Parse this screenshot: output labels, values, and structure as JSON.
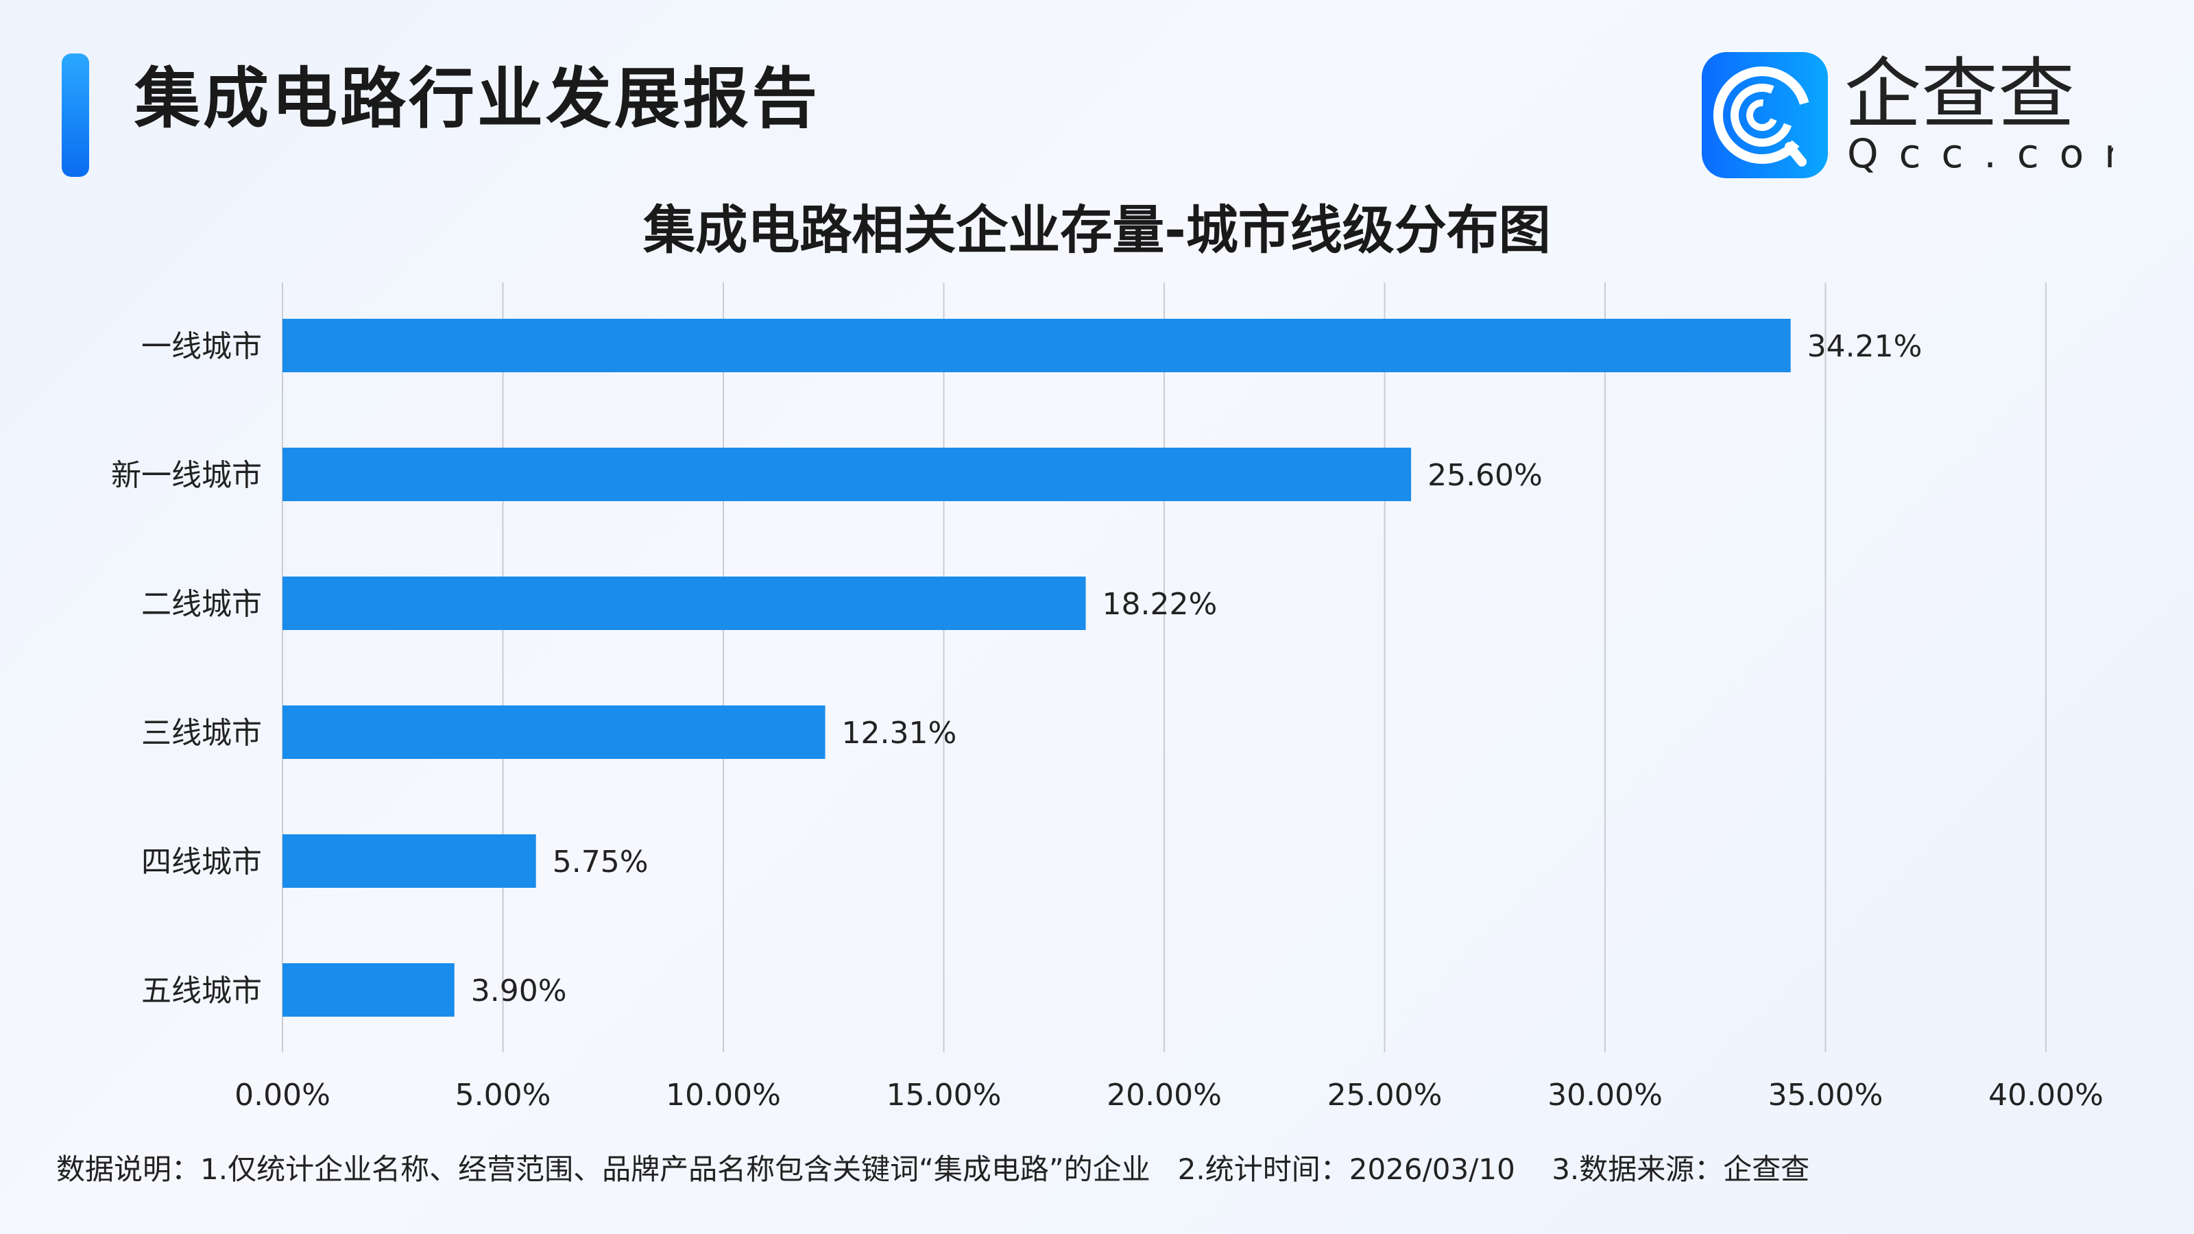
{
  "header": {
    "title": "集成电路行业发展报告"
  },
  "logo": {
    "cn": "企查查",
    "en": "Qcc.com",
    "icon": "qcc-logo-icon",
    "brand_color": "#1677ff"
  },
  "chart_data": {
    "type": "bar",
    "orientation": "horizontal",
    "title": "集成电路相关企业存量-城市线级分布图",
    "categories": [
      "一线城市",
      "新一线城市",
      "二线城市",
      "三线城市",
      "四线城市",
      "五线城市"
    ],
    "values": [
      34.21,
      25.6,
      18.22,
      12.31,
      5.75,
      3.9
    ],
    "data_labels": [
      "34.21%",
      "25.60%",
      "18.22%",
      "12.31%",
      "5.75%",
      "3.90%"
    ],
    "xlim": [
      0,
      40
    ],
    "x_ticks": [
      0,
      5,
      10,
      15,
      20,
      25,
      30,
      35,
      40
    ],
    "x_tick_labels": [
      "0.00%",
      "5.00%",
      "10.00%",
      "15.00%",
      "20.00%",
      "25.00%",
      "30.00%",
      "35.00%",
      "40.00%"
    ],
    "grid": "vertical",
    "bar_color": "#1a8ceb",
    "xlabel": "",
    "ylabel": ""
  },
  "footer": {
    "note": "数据说明：1.仅统计企业名称、经营范围、品牌产品名称包含关键词“集成电路”的企业   2.统计时间：2026/03/10    3.数据来源：企查查"
  }
}
